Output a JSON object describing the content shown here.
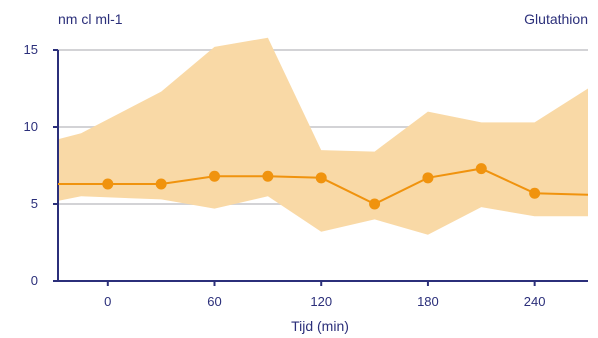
{
  "chart_data": {
    "type": "line",
    "title": "Glutathion",
    "ylabel": "nm cl ml-1",
    "xlabel": "Tijd (min)",
    "xlim": [
      -28,
      270
    ],
    "ylim": [
      0,
      15
    ],
    "x_ticks": [
      0,
      60,
      120,
      180,
      240
    ],
    "y_ticks": [
      0,
      5,
      10,
      15
    ],
    "grid": "horizontal",
    "colors": {
      "band": "#f9d9a6",
      "line": "#f0930e",
      "axis": "#2b2f7a",
      "grid": "#d3d3d6"
    },
    "band": {
      "x": [
        -28,
        -15,
        30,
        60,
        90,
        120,
        150,
        180,
        210,
        240,
        270
      ],
      "upper": [
        9.2,
        9.6,
        12.3,
        15.2,
        15.8,
        8.5,
        8.4,
        11.0,
        10.3,
        10.3,
        12.5
      ],
      "lower": [
        5.2,
        5.5,
        5.3,
        4.7,
        5.5,
        3.2,
        4.0,
        3.0,
        4.8,
        4.2,
        4.2
      ]
    },
    "series": [
      {
        "x": [
          -28,
          0,
          30,
          60,
          90,
          120,
          150,
          180,
          210,
          240,
          270
        ],
        "values": [
          6.3,
          6.3,
          6.3,
          6.8,
          6.8,
          6.7,
          5.0,
          6.7,
          7.3,
          5.7,
          5.6
        ],
        "markers_x": [
          0,
          30,
          60,
          90,
          120,
          150,
          180,
          210,
          240
        ]
      }
    ]
  }
}
